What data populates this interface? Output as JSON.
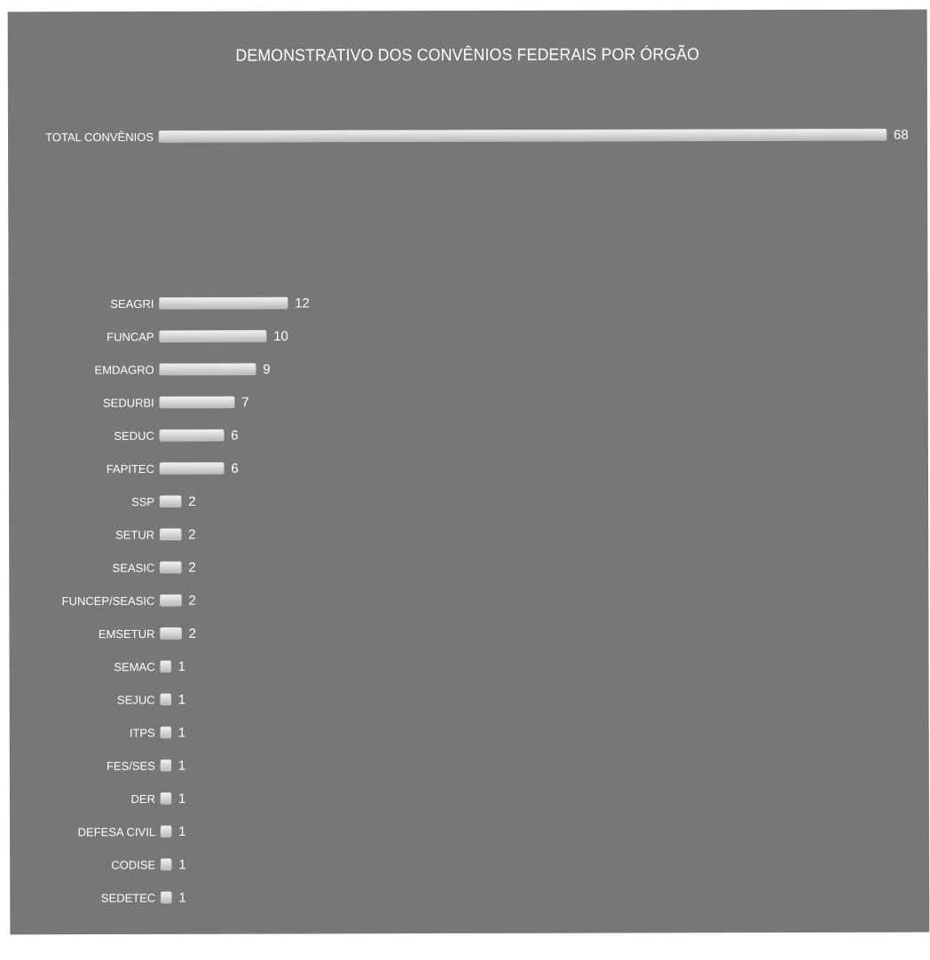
{
  "chart_data": {
    "type": "bar",
    "orientation": "horizontal",
    "title": "DEMONSTRATIVO DOS CONVÊNIOS FEDERAIS POR ÓRGÃO",
    "xlabel": "",
    "ylabel": "",
    "xlim": [
      0,
      68
    ],
    "grid": false,
    "legend": "none",
    "colors": {
      "background": "#777777",
      "bar": "#dcdcdc",
      "text": "#ffffff"
    },
    "categories": [
      "TOTAL CONVÊNIOS",
      "SEAGRI",
      "FUNCAP",
      "EMDAGRO",
      "SEDURBI",
      "SEDUC",
      "FAPITEC",
      "SSP",
      "SETUR",
      "SEASIC",
      "FUNCEP/SEASIC",
      "EMSETUR",
      "SEMAC",
      "SEJUC",
      "ITPS",
      "FES/SES",
      "DER",
      "DEFESA CIVIL",
      "CODISE",
      "SEDETEC"
    ],
    "values": [
      68,
      12,
      10,
      9,
      7,
      6,
      6,
      2,
      2,
      2,
      2,
      2,
      1,
      1,
      1,
      1,
      1,
      1,
      1,
      1
    ],
    "value_labels": [
      "68",
      "12",
      "10",
      "9",
      "7",
      "6",
      "6",
      "2",
      "2",
      "2",
      "2",
      "2",
      "1",
      "1",
      "1",
      "1",
      "1",
      "1",
      "1",
      "1"
    ]
  }
}
